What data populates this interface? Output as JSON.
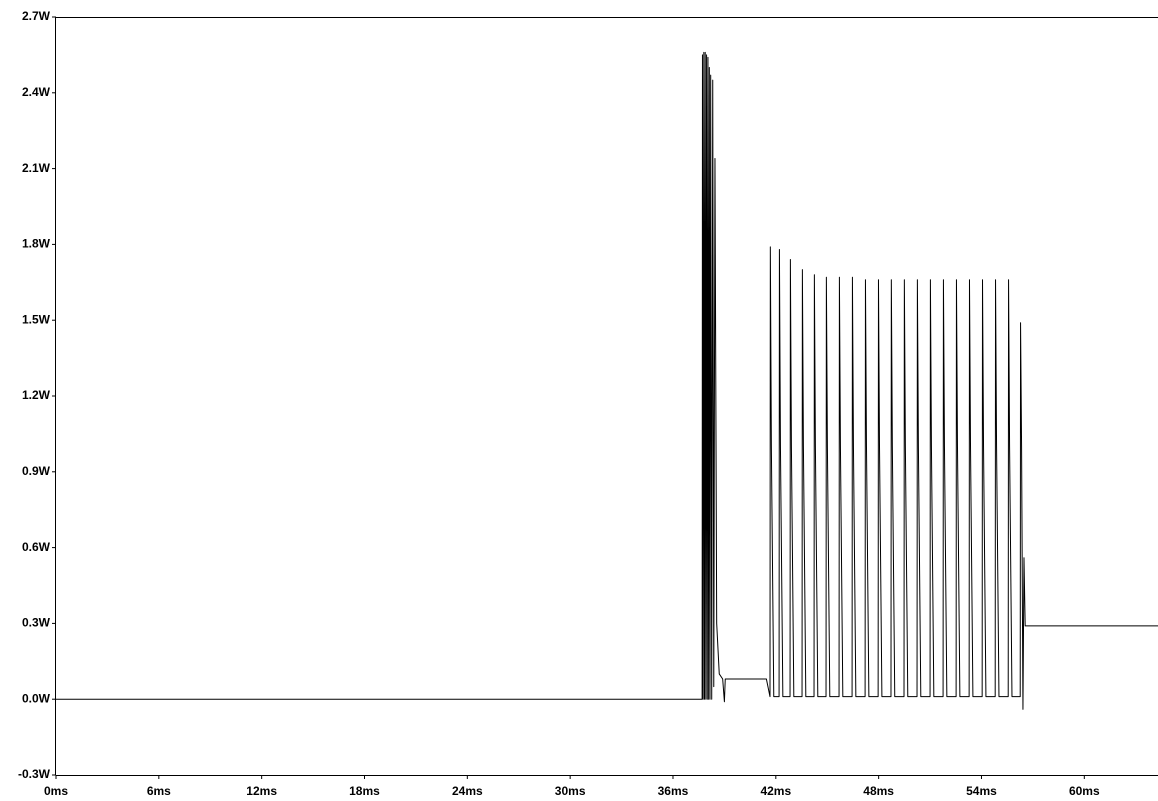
{
  "chart_data": {
    "type": "line",
    "x": [
      0,
      37.7,
      37.72,
      37.76,
      37.8,
      37.84,
      37.88,
      37.92,
      37.96,
      38.0,
      38.04,
      38.08,
      38.12,
      38.16,
      38.2,
      38.26,
      38.32,
      38.38,
      38.45,
      38.55,
      38.7,
      38.9,
      39.0,
      39.05,
      41.45,
      41.66,
      41.68,
      41.74,
      41.88,
      42.19,
      42.21,
      42.27,
      42.41,
      42.83,
      42.85,
      42.91,
      43.05,
      43.53,
      43.55,
      43.61,
      43.75,
      44.23,
      44.25,
      44.31,
      44.45,
      44.93,
      44.95,
      45.01,
      45.15,
      45.69,
      45.71,
      45.77,
      45.91,
      46.45,
      46.47,
      46.53,
      46.67,
      47.21,
      47.23,
      47.29,
      47.43,
      47.97,
      47.99,
      48.05,
      48.19,
      48.72,
      48.74,
      48.8,
      48.94,
      49.48,
      49.5,
      49.56,
      49.7,
      50.24,
      50.26,
      50.32,
      50.46,
      51.0,
      51.02,
      51.08,
      51.22,
      51.76,
      51.78,
      51.84,
      51.98,
      52.52,
      52.54,
      52.6,
      52.74,
      53.28,
      53.3,
      53.36,
      53.5,
      54.04,
      54.06,
      54.12,
      54.26,
      54.8,
      54.82,
      54.88,
      55.02,
      55.56,
      55.58,
      55.64,
      55.78,
      56.26,
      56.28,
      56.34,
      56.42,
      56.48,
      56.55,
      64.3
    ],
    "series": [
      {
        "color": "#000000",
        "values": [
          0,
          0,
          2.55,
          0,
          2.56,
          0,
          2.56,
          0,
          2.55,
          0,
          2.54,
          0,
          2.5,
          0,
          2.47,
          0,
          2.45,
          0.05,
          2.14,
          0.3,
          0.1,
          0.08,
          -0.01,
          0.08,
          0.08,
          0.01,
          1.79,
          1.0,
          0.01,
          0.01,
          1.78,
          1.0,
          0.01,
          0.01,
          1.74,
          1.0,
          0.01,
          0.01,
          1.7,
          1.0,
          0.01,
          0.01,
          1.68,
          1.0,
          0.01,
          0.01,
          1.67,
          1.0,
          0.01,
          0.01,
          1.67,
          1.0,
          0.01,
          0.01,
          1.67,
          1.0,
          0.01,
          0.01,
          1.66,
          1.0,
          0.01,
          0.01,
          1.66,
          1.0,
          0.01,
          0.01,
          1.66,
          1.0,
          0.01,
          0.01,
          1.66,
          1.0,
          0.01,
          0.01,
          1.66,
          1.0,
          0.01,
          0.01,
          1.66,
          1.0,
          0.01,
          0.01,
          1.66,
          1.0,
          0.01,
          0.01,
          1.66,
          1.0,
          0.01,
          0.01,
          1.66,
          1.0,
          0.01,
          0.01,
          1.66,
          1.0,
          0.01,
          0.01,
          1.66,
          1.0,
          0.01,
          0.01,
          1.66,
          1.0,
          0.01,
          0.01,
          1.49,
          1.0,
          -0.04,
          0.56,
          0.29,
          0.29
        ]
      }
    ],
    "xlim": [
      0,
      64.3
    ],
    "ylim": [
      -0.3,
      2.7
    ],
    "xticks": [
      {
        "value": 0,
        "label": "0ms"
      },
      {
        "value": 6,
        "label": "6ms"
      },
      {
        "value": 12,
        "label": "12ms"
      },
      {
        "value": 18,
        "label": "18ms"
      },
      {
        "value": 24,
        "label": "24ms"
      },
      {
        "value": 30,
        "label": "30ms"
      },
      {
        "value": 36,
        "label": "36ms"
      },
      {
        "value": 42,
        "label": "42ms"
      },
      {
        "value": 48,
        "label": "48ms"
      },
      {
        "value": 54,
        "label": "54ms"
      },
      {
        "value": 60,
        "label": "60ms"
      }
    ],
    "yticks": [
      {
        "value": -0.3,
        "label": "-0.3W"
      },
      {
        "value": 0,
        "label": "0.0W"
      },
      {
        "value": 0.3,
        "label": "0.3W"
      },
      {
        "value": 0.6,
        "label": "0.6W"
      },
      {
        "value": 0.9,
        "label": "0.9W"
      },
      {
        "value": 1.2,
        "label": "1.2W"
      },
      {
        "value": 1.5,
        "label": "1.5W"
      },
      {
        "value": 1.8,
        "label": "1.8W"
      },
      {
        "value": 2.1,
        "label": "2.1W"
      },
      {
        "value": 2.4,
        "label": "2.4W"
      },
      {
        "value": 2.7,
        "label": "2.7W"
      }
    ],
    "grid": false
  }
}
